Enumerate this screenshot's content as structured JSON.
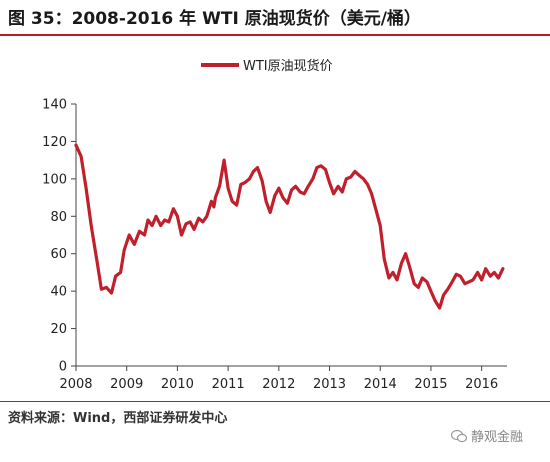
{
  "title": "图 35：2008-2016 年 WTI 原油现货价（美元/桶）",
  "source": "资料来源：Wind，西部证券研发中心",
  "watermark": "静观金融",
  "chart_data": {
    "type": "line",
    "title": "图 35：2008-2016 年 WTI 原油现货价（美元/桶）",
    "xlabel": "",
    "ylabel": "",
    "legend": {
      "position": "top-center",
      "entries": [
        "WTI原油现货价"
      ]
    },
    "xlim": [
      2008,
      2016.5
    ],
    "ylim": [
      0,
      140
    ],
    "x_ticks": [
      "2008",
      "2009",
      "2010",
      "2011",
      "2012",
      "2013",
      "2014",
      "2015",
      "2016"
    ],
    "y_ticks": [
      "0",
      "20",
      "40",
      "60",
      "80",
      "100",
      "120",
      "140"
    ],
    "grid": false,
    "color": "#c0202c",
    "series": [
      {
        "name": "WTI原油现货价",
        "x": [
          2008.0,
          2008.1,
          2008.2,
          2008.3,
          2008.42,
          2008.5,
          2008.6,
          2008.7,
          2008.78,
          2008.88,
          2008.95,
          2009.05,
          2009.15,
          2009.25,
          2009.35,
          2009.42,
          2009.5,
          2009.58,
          2009.67,
          2009.75,
          2009.83,
          2009.92,
          2010.0,
          2010.08,
          2010.17,
          2010.25,
          2010.33,
          2010.42,
          2010.5,
          2010.58,
          2010.67,
          2010.72,
          2010.75,
          2010.83,
          2010.92,
          2011.0,
          2011.08,
          2011.17,
          2011.25,
          2011.33,
          2011.42,
          2011.5,
          2011.58,
          2011.67,
          2011.75,
          2011.83,
          2011.92,
          2012.0,
          2012.08,
          2012.17,
          2012.25,
          2012.33,
          2012.42,
          2012.5,
          2012.58,
          2012.67,
          2012.75,
          2012.83,
          2012.92,
          2013.0,
          2013.08,
          2013.17,
          2013.25,
          2013.33,
          2013.42,
          2013.5,
          2013.58,
          2013.67,
          2013.75,
          2013.83,
          2013.92,
          2014.0,
          2014.08,
          2014.17,
          2014.25,
          2014.33,
          2014.42,
          2014.5,
          2014.58,
          2014.67,
          2014.75,
          2014.83,
          2014.92,
          2015.0,
          2015.08,
          2015.17,
          2015.25,
          2015.33,
          2015.42,
          2015.5,
          2015.58,
          2015.67,
          2015.75,
          2015.83,
          2015.92,
          2016.0,
          2016.08,
          2016.17,
          2016.25,
          2016.33,
          2016.42
        ],
        "y": [
          118,
          112,
          95,
          75,
          55,
          41,
          42,
          39,
          48,
          50,
          62,
          70,
          65,
          72,
          70,
          78,
          75,
          80,
          75,
          78,
          77,
          84,
          80,
          70,
          76,
          77,
          73,
          79,
          77,
          80,
          88,
          85,
          90,
          96,
          110,
          95,
          88,
          86,
          97,
          98,
          100,
          104,
          106,
          99,
          88,
          82,
          91,
          95,
          90,
          87,
          94,
          96,
          93,
          92,
          96,
          100,
          106,
          107,
          105,
          98,
          92,
          96,
          93,
          100,
          101,
          104,
          102,
          100,
          97,
          92,
          83,
          75,
          57,
          47,
          50,
          46,
          55,
          60,
          53,
          44,
          42,
          47,
          45,
          40,
          35,
          31,
          38,
          41,
          45,
          49,
          48,
          44,
          45,
          46,
          50,
          46,
          52,
          48,
          50,
          47,
          52
        ]
      }
    ]
  }
}
